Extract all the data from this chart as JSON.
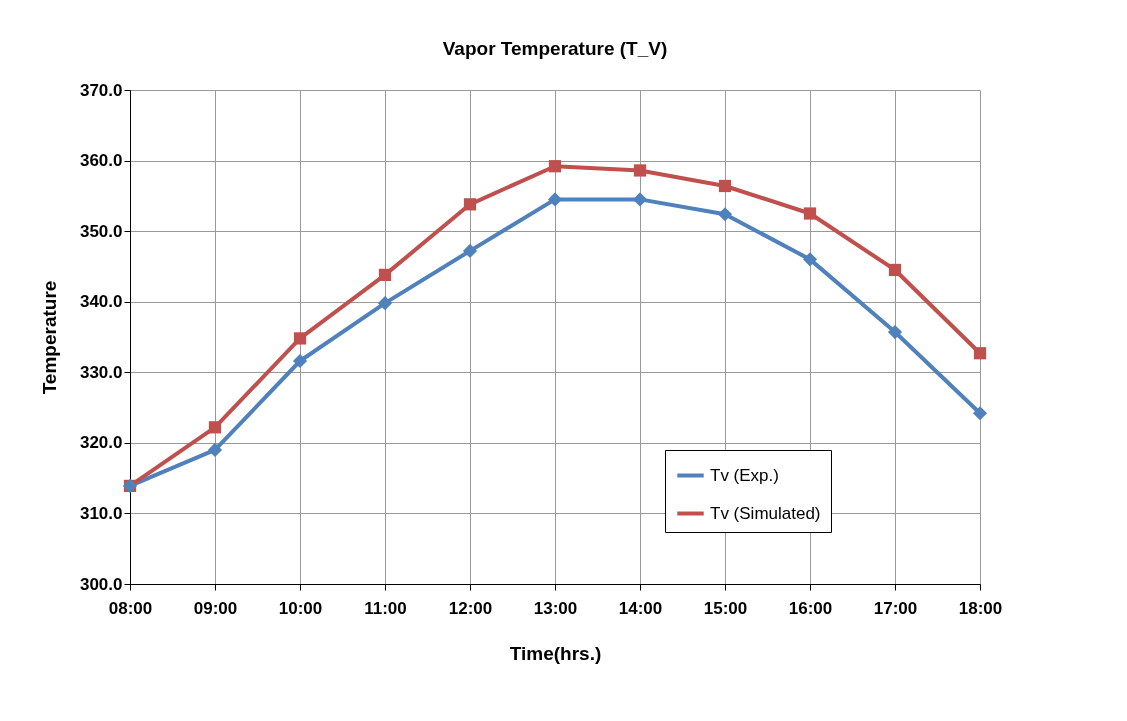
{
  "chart_data": {
    "type": "line",
    "title": "Vapor Temperature (T_V)",
    "xlabel": "Time(hrs.)",
    "ylabel": "Temperature",
    "x": [
      8,
      9,
      10,
      11,
      12,
      13,
      14,
      15,
      16,
      17,
      18
    ],
    "series": [
      {
        "name": "Tv (Exp.)",
        "color": "#4f81bd",
        "marker": "diamond",
        "values": [
          313.9,
          319.0,
          331.6,
          339.8,
          347.2,
          354.5,
          354.5,
          352.4,
          346.0,
          335.7,
          324.2
        ]
      },
      {
        "name": "Tv (Simulated)",
        "color": "#c0504d",
        "marker": "square",
        "values": [
          313.9,
          322.2,
          334.8,
          343.8,
          353.8,
          359.2,
          358.6,
          356.4,
          352.5,
          344.5,
          332.7
        ]
      }
    ],
    "xlim": [
      8,
      18
    ],
    "xticks": [
      {
        "value": 8,
        "label": "08:00"
      },
      {
        "value": 9,
        "label": "09:00"
      },
      {
        "value": 10,
        "label": "10:00"
      },
      {
        "value": 11,
        "label": "11:00"
      },
      {
        "value": 12,
        "label": "12:00"
      },
      {
        "value": 13,
        "label": "13:00"
      },
      {
        "value": 14,
        "label": "14:00"
      },
      {
        "value": 15,
        "label": "15:00"
      },
      {
        "value": 16,
        "label": "16:00"
      },
      {
        "value": 17,
        "label": "17:00"
      },
      {
        "value": 18,
        "label": "18:00"
      }
    ],
    "ylim": [
      300,
      370
    ],
    "yticks": [
      {
        "value": 300,
        "label": "300.0"
      },
      {
        "value": 310,
        "label": "310.0"
      },
      {
        "value": 320,
        "label": "320.0"
      },
      {
        "value": 330,
        "label": "330.0"
      },
      {
        "value": 340,
        "label": "340.0"
      },
      {
        "value": 350,
        "label": "350.0"
      },
      {
        "value": 360,
        "label": "360.0"
      },
      {
        "value": 370,
        "label": "370.0"
      }
    ],
    "grid": true,
    "legend": "bottom right",
    "line_style": "solid"
  }
}
